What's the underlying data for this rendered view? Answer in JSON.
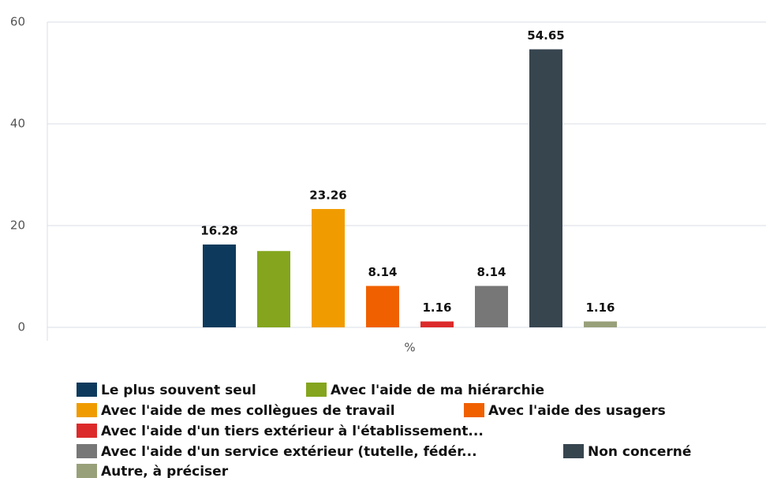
{
  "chart_data": {
    "type": "bar",
    "categories": [
      "%"
    ],
    "series": [
      {
        "name": "Le plus souvent seul",
        "color": "#0d3a5c",
        "values": [
          16.28
        ]
      },
      {
        "name": "Avec l'aide de ma hiérarchie",
        "color": "#84a51d",
        "values": [
          15
        ],
        "data_label": false
      },
      {
        "name": "Avec l'aide de mes collègues de travail",
        "color": "#f09c00",
        "values": [
          23.26
        ]
      },
      {
        "name": "Avec l'aide des usagers",
        "color": "#f06000",
        "values": [
          8.14
        ]
      },
      {
        "name": "Avec l'aide d'un tiers extérieur à l'établissement...",
        "color": "#dc2a2a",
        "values": [
          1.16
        ]
      },
      {
        "name": "Avec l'aide d'un service extérieur (tutelle, fédér...",
        "color": "#777777",
        "values": [
          8.14
        ]
      },
      {
        "name": "Non concerné",
        "color": "#37454f",
        "values": [
          54.65
        ]
      },
      {
        "name": "Autre, à préciser",
        "color": "#98a07a",
        "values": [
          1.16
        ]
      }
    ],
    "ylim": [
      0,
      60
    ],
    "yticks": [
      0,
      20,
      40,
      60
    ],
    "grid": true,
    "legend": "bottom"
  }
}
